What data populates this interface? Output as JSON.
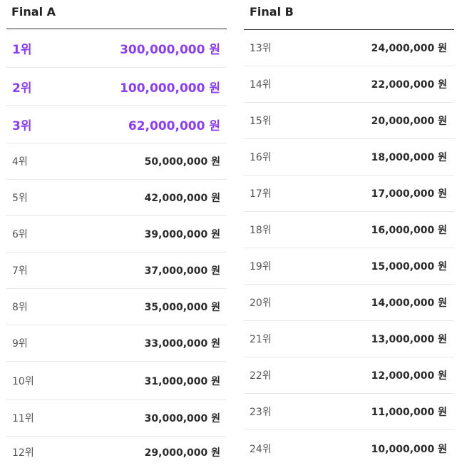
{
  "final_a": {
    "title": "Final A",
    "rows": [
      {
        "rank": "1위",
        "prize": "300,000,000 원",
        "highlight": true
      },
      {
        "rank": "2위",
        "prize": "100,000,000 원",
        "highlight": true
      },
      {
        "rank": "3위",
        "prize": "62,000,000 원",
        "highlight": true
      },
      {
        "rank": "4위",
        "prize": "50,000,000 원"
      },
      {
        "rank": "5위",
        "prize": "42,000,000 원"
      },
      {
        "rank": "6위",
        "prize": "39,000,000 원"
      },
      {
        "rank": "7위",
        "prize": "37,000,000 원"
      },
      {
        "rank": "8위",
        "prize": "35,000,000 원"
      },
      {
        "rank": "9위",
        "prize": "33,000,000 원"
      },
      {
        "rank": "10위",
        "prize": "31,000,000 원"
      },
      {
        "rank": "11위",
        "prize": "30,000,000 원"
      },
      {
        "rank": "12위",
        "prize": "29,000,000 원"
      }
    ]
  },
  "final_b": {
    "title": "Final B",
    "rows": [
      {
        "rank": "13위",
        "prize": "24,000,000 원"
      },
      {
        "rank": "14위",
        "prize": "22,000,000 원"
      },
      {
        "rank": "15위",
        "prize": "20,000,000 원"
      },
      {
        "rank": "16위",
        "prize": "18,000,000 원"
      },
      {
        "rank": "17위",
        "prize": "17,000,000 원"
      },
      {
        "rank": "18위",
        "prize": "16,000,000 원"
      },
      {
        "rank": "19위",
        "prize": "15,000,000 원"
      },
      {
        "rank": "20위",
        "prize": "14,000,000 원"
      },
      {
        "rank": "21위",
        "prize": "13,000,000 원"
      },
      {
        "rank": "22위",
        "prize": "12,000,000 원"
      },
      {
        "rank": "23위",
        "prize": "11,000,000 원"
      },
      {
        "rank": "24위",
        "prize": "10,000,000 원"
      }
    ]
  },
  "colors": {
    "highlight": "#8a3ff0",
    "text": "#333333"
  }
}
